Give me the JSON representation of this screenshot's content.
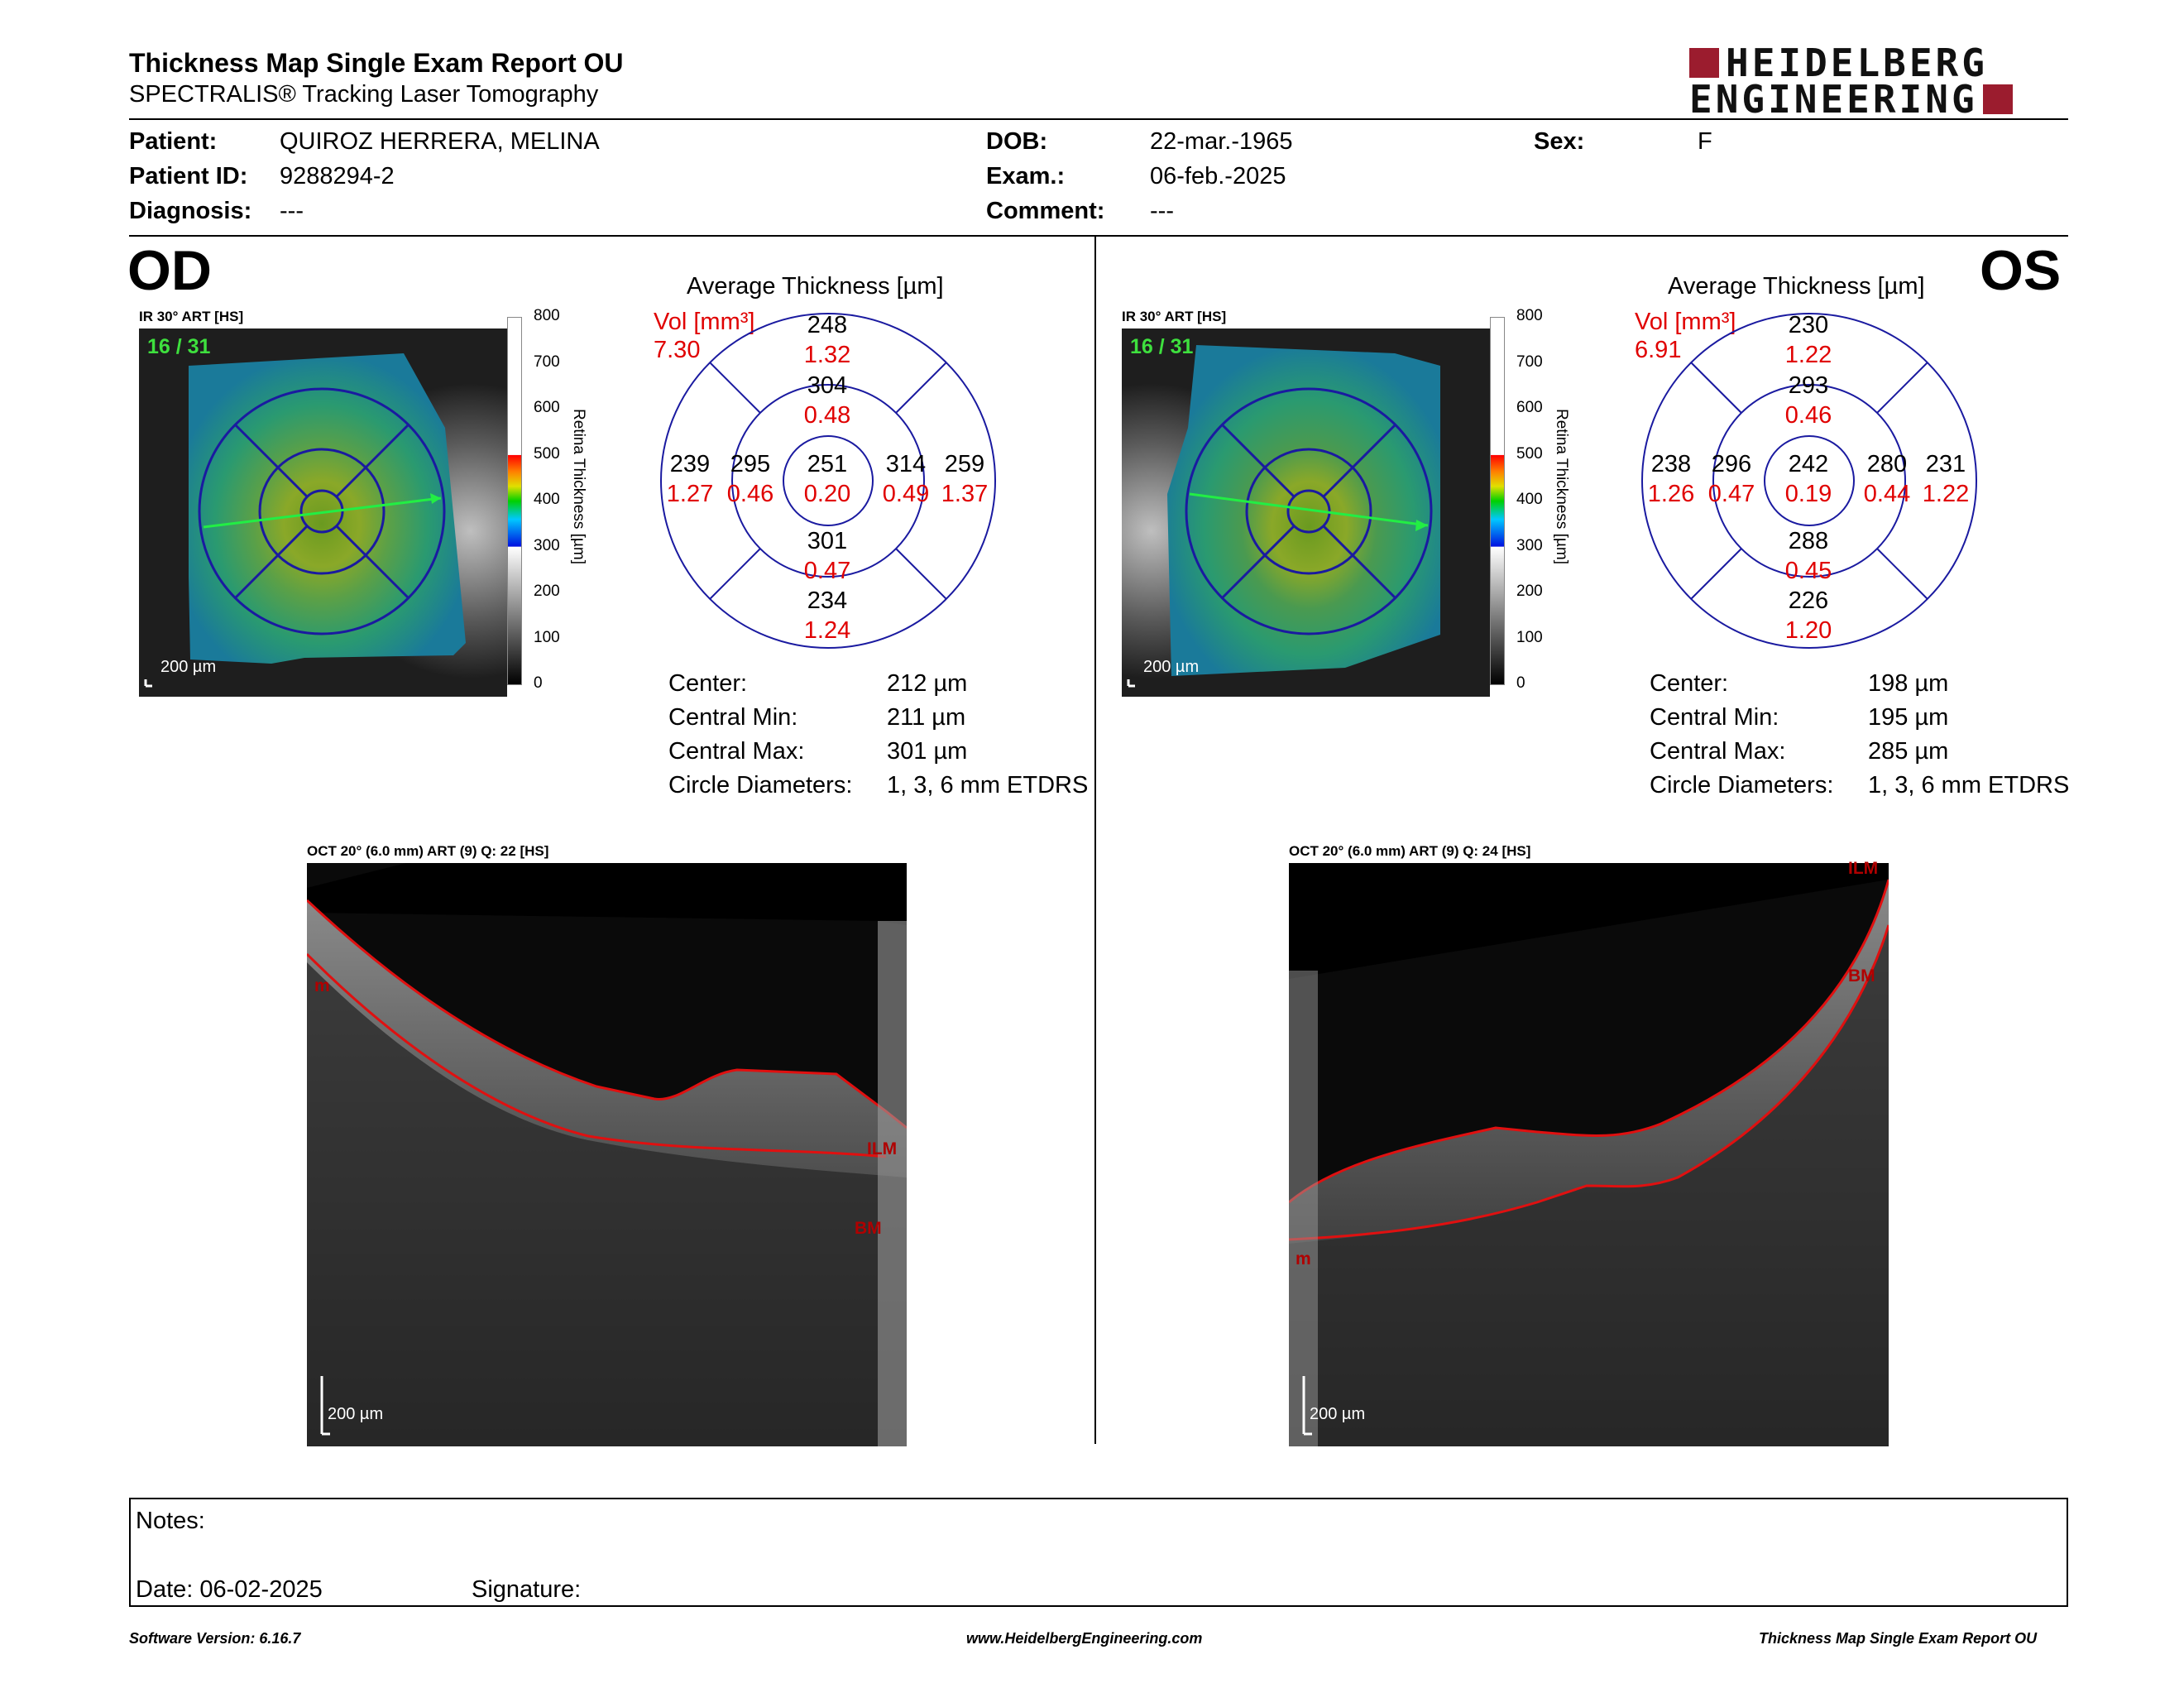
{
  "header": {
    "title": "Thickness Map Single Exam Report OU",
    "subtitle": "SPECTRALIS® Tracking Laser Tomography",
    "logo": {
      "line1": "HEIDELBERG",
      "line2": "ENGINEERING",
      "accent_color": "#9b1c2e"
    }
  },
  "patient": {
    "labels": {
      "patient": "Patient:",
      "patient_id": "Patient ID:",
      "diagnosis": "Diagnosis:",
      "dob": "DOB:",
      "exam": "Exam.:",
      "comment": "Comment:",
      "sex": "Sex:"
    },
    "name": "QUIROZ HERRERA, MELINA",
    "id": "9288294-2",
    "diagnosis": "---",
    "dob": "22-mar.-1965",
    "exam": "06-feb.-2025",
    "comment": "---",
    "sex": "F"
  },
  "eyes": {
    "od": {
      "label": "OD",
      "ir_label": "IR 30° ART [HS]",
      "scan_counter": "16 / 31",
      "scale_label": "200 µm",
      "colorbar": {
        "ticks": [
          "800",
          "700",
          "600",
          "500",
          "400",
          "300",
          "200",
          "100",
          "0"
        ],
        "title": "Retina Thickness [µm]"
      },
      "etdrs": {
        "title": "Average Thickness [µm]",
        "vol_label": "Vol [mm³]",
        "vol_value": "7.30",
        "center": {
          "thickness": "251",
          "volume": "0.20"
        },
        "inner_superior": {
          "thickness": "304",
          "volume": "0.48"
        },
        "outer_superior": {
          "thickness": "248",
          "volume": "1.32"
        },
        "inner_inferior": {
          "thickness": "301",
          "volume": "0.47"
        },
        "outer_inferior": {
          "thickness": "234",
          "volume": "1.24"
        },
        "inner_left": {
          "thickness": "295",
          "volume": "0.46"
        },
        "outer_left": {
          "thickness": "239",
          "volume": "1.27"
        },
        "inner_right": {
          "thickness": "314",
          "volume": "0.49"
        },
        "outer_right": {
          "thickness": "259",
          "volume": "1.37"
        }
      },
      "stats": {
        "center_label": "Center:",
        "center_value": "212 µm",
        "min_label": "Central Min:",
        "min_value": "211 µm",
        "max_label": "Central Max:",
        "max_value": "301 µm",
        "diam_label": "Circle Diameters:",
        "diam_value": "1, 3, 6 mm ETDRS"
      },
      "oct": {
        "label": "OCT 20° (6.0 mm) ART (9) Q: 22 [HS]",
        "scale_label": "200 µm",
        "layer_ilm": "ILM",
        "layer_bm": "BM",
        "side_marker": "m"
      }
    },
    "os": {
      "label": "OS",
      "ir_label": "IR 30° ART [HS]",
      "scan_counter": "16 / 31",
      "scale_label": "200 µm",
      "colorbar": {
        "ticks": [
          "800",
          "700",
          "600",
          "500",
          "400",
          "300",
          "200",
          "100",
          "0"
        ],
        "title": "Retina Thickness [µm]"
      },
      "etdrs": {
        "title": "Average Thickness [µm]",
        "vol_label": "Vol [mm³]",
        "vol_value": "6.91",
        "center": {
          "thickness": "242",
          "volume": "0.19"
        },
        "inner_superior": {
          "thickness": "293",
          "volume": "0.46"
        },
        "outer_superior": {
          "thickness": "230",
          "volume": "1.22"
        },
        "inner_inferior": {
          "thickness": "288",
          "volume": "0.45"
        },
        "outer_inferior": {
          "thickness": "226",
          "volume": "1.20"
        },
        "inner_left": {
          "thickness": "296",
          "volume": "0.47"
        },
        "outer_left": {
          "thickness": "238",
          "volume": "1.26"
        },
        "inner_right": {
          "thickness": "280",
          "volume": "0.44"
        },
        "outer_right": {
          "thickness": "231",
          "volume": "1.22"
        }
      },
      "stats": {
        "center_label": "Center:",
        "center_value": "198 µm",
        "min_label": "Central Min:",
        "min_value": "195 µm",
        "max_label": "Central Max:",
        "max_value": "285 µm",
        "diam_label": "Circle Diameters:",
        "diam_value": "1, 3, 6 mm ETDRS"
      },
      "oct": {
        "label": "OCT 20° (6.0 mm) ART (9) Q: 24 [HS]",
        "scale_label": "200 µm",
        "layer_ilm": "ILM",
        "layer_bm": "BM",
        "side_marker": "m"
      }
    }
  },
  "notes": {
    "notes_label": "Notes:",
    "date_label": "Date: 06-02-2025",
    "signature_label": "Signature:"
  },
  "footer": {
    "software": "Software Version: 6.16.7",
    "website": "www.HeidelbergEngineering.com",
    "report_name": "Thickness Map Single Exam Report OU"
  },
  "colors": {
    "etdrs_circle": "#1a1aa0",
    "volume_text": "#e00000",
    "scan_line": "#22ee44"
  }
}
